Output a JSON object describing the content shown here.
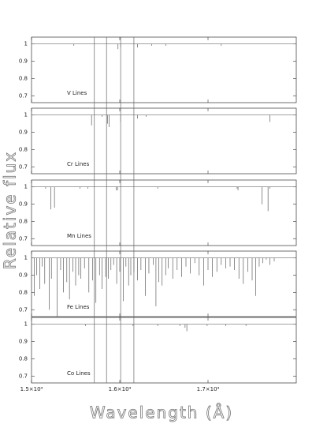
{
  "chart_data": {
    "type": "spectrum-panels",
    "xlabel": "Wavelength (Å)",
    "ylabel": "Relative flux",
    "xlim": [
      15000,
      18000
    ],
    "xticks": [
      {
        "value": 15000,
        "label": "1.5×10⁴"
      },
      {
        "value": 16000,
        "label": "1.6×10⁴"
      },
      {
        "value": 17000,
        "label": "1.7×10⁴"
      }
    ],
    "ylim": [
      0.66,
      1.04
    ],
    "yticks": [
      0.7,
      0.8,
      0.9,
      1
    ],
    "continuum": 1,
    "marker_lines": [
      15712,
      15850,
      16010,
      16160
    ],
    "color": "#444",
    "panels": [
      {
        "label": "V Lines",
        "x": [
          15480,
          15980,
          16010,
          16200,
          16360,
          16520,
          17150
        ],
        "values": [
          0.99,
          0.97,
          0.98,
          0.98,
          0.99,
          0.99,
          0.99
        ]
      },
      {
        "label": "Cr Lines",
        "x": [
          15680,
          15800,
          15860,
          15880,
          16010,
          16200,
          16300,
          17700
        ],
        "values": [
          0.94,
          0.99,
          0.95,
          0.93,
          0.96,
          0.98,
          0.99,
          0.96
        ]
      },
      {
        "label": "Mn Lines",
        "x": [
          15160,
          15220,
          15260,
          15550,
          15640,
          15960,
          15975,
          16430,
          17330,
          17340,
          17610,
          17680,
          17700
        ],
        "values": [
          0.99,
          0.87,
          0.88,
          0.99,
          0.99,
          0.98,
          0.98,
          0.99,
          0.99,
          0.98,
          0.9,
          0.86,
          0.99
        ]
      },
      {
        "label": "Fe Lines",
        "x": [
          15030,
          15060,
          15095,
          15120,
          15150,
          15200,
          15225,
          15290,
          15330,
          15360,
          15400,
          15430,
          15470,
          15500,
          15535,
          15560,
          15600,
          15650,
          15690,
          15730,
          15770,
          15800,
          15840,
          15870,
          15900,
          15930,
          15965,
          16000,
          16040,
          16070,
          16100,
          16125,
          16160,
          16200,
          16240,
          16290,
          16330,
          16380,
          16410,
          16440,
          16480,
          16520,
          16550,
          16600,
          16650,
          16700,
          16750,
          16800,
          16850,
          16900,
          16950,
          17000,
          17050,
          17100,
          17150,
          17200,
          17250,
          17300,
          17350,
          17400,
          17450,
          17500,
          17540,
          17580,
          17620,
          17660,
          17700,
          17750
        ],
        "values": [
          0.78,
          0.9,
          0.82,
          0.95,
          0.85,
          0.7,
          0.88,
          0.66,
          0.93,
          0.8,
          0.86,
          0.76,
          0.92,
          0.84,
          0.9,
          0.88,
          0.94,
          0.8,
          0.87,
          0.74,
          0.9,
          0.82,
          0.89,
          0.88,
          0.93,
          0.96,
          0.85,
          0.92,
          0.75,
          0.95,
          0.84,
          0.9,
          0.92,
          0.87,
          0.93,
          0.78,
          0.91,
          0.96,
          0.72,
          0.86,
          0.84,
          0.9,
          0.94,
          0.88,
          0.93,
          0.89,
          0.95,
          0.91,
          0.97,
          0.9,
          0.84,
          0.93,
          0.89,
          0.92,
          0.96,
          0.94,
          0.95,
          0.93,
          0.88,
          0.85,
          0.92,
          0.87,
          0.78,
          0.95,
          0.97,
          0.99,
          0.96,
          0.98
        ]
      },
      {
        "label": "Co Lines",
        "x": [
          15610,
          16150,
          16430,
          16680,
          16740,
          16760,
          16990,
          17200,
          17430
        ],
        "values": [
          0.99,
          0.99,
          0.99,
          0.99,
          0.98,
          0.96,
          0.99,
          0.99,
          0.99
        ]
      }
    ]
  }
}
